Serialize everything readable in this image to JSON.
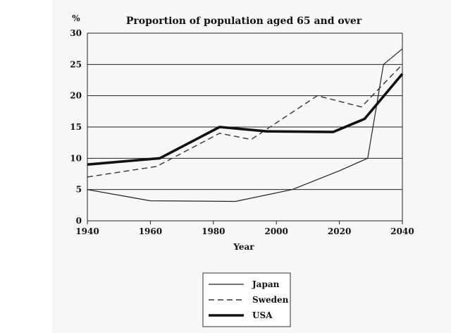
{
  "chart_data": {
    "type": "line",
    "title": "Proportion of population aged 65 and over",
    "ylabel": "%",
    "xlabel": "Year",
    "xlim": [
      1940,
      2040
    ],
    "ylim": [
      0,
      30
    ],
    "xticks": [
      "1940",
      "1960",
      "1980",
      "2000",
      "2020",
      "2040"
    ],
    "yticks": [
      "0",
      "5",
      "10",
      "15",
      "20",
      "25",
      "30"
    ],
    "grid": "horizontal",
    "legend_placement": "bottom-center",
    "series": [
      {
        "name": "Japan",
        "style": "thin-solid",
        "points": [
          [
            1940,
            5
          ],
          [
            1960,
            3.2
          ],
          [
            1987,
            3.1
          ],
          [
            2005,
            5
          ],
          [
            2020,
            8
          ],
          [
            2029,
            10
          ],
          [
            2034,
            25
          ],
          [
            2040,
            27.5
          ]
        ]
      },
      {
        "name": "Sweden",
        "style": "dashed",
        "points": [
          [
            1940,
            7
          ],
          [
            1962,
            8.7
          ],
          [
            1982,
            14
          ],
          [
            1992,
            13
          ],
          [
            2013,
            20
          ],
          [
            2027,
            18.2
          ],
          [
            2040,
            25
          ]
        ]
      },
      {
        "name": "USA",
        "style": "thick-solid",
        "points": [
          [
            1940,
            9
          ],
          [
            1963,
            10
          ],
          [
            1982,
            15
          ],
          [
            1997,
            14.3
          ],
          [
            2018,
            14.2
          ],
          [
            2028,
            16.3
          ],
          [
            2040,
            23.5
          ]
        ]
      }
    ]
  }
}
